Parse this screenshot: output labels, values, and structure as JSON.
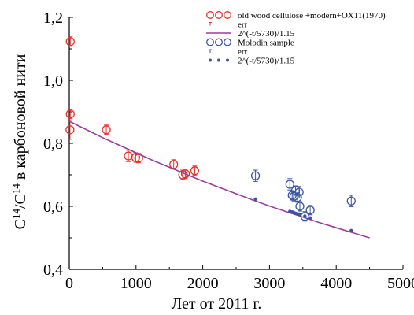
{
  "chart_data": {
    "type": "scatter",
    "xlabel": "Лет от 2011 г.",
    "ylabel_main": "C",
    "ylabel_sup1": "14",
    "ylabel_slash": "/C",
    "ylabel_sup2": "14",
    "ylabel_rest": " в карбоновой нити",
    "xlim": [
      0,
      5000
    ],
    "ylim": [
      0.4,
      1.2
    ],
    "x_ticks": [
      0,
      1000,
      2000,
      3000,
      4000,
      5000
    ],
    "x_tick_labels": [
      "0",
      "1000",
      "2000",
      "3000",
      "4000",
      "5000"
    ],
    "y_ticks": [
      0.4,
      0.6,
      0.8,
      1.0,
      1.2
    ],
    "y_tick_labels": [
      "0,4",
      "0,6",
      "0,8",
      "1,0",
      "1,2"
    ],
    "grid": false,
    "legend_position": "top-right",
    "colors": {
      "red": "#e8312a",
      "purple": "#9b3d9e",
      "blue": "#3a55a4",
      "axis": "#000000"
    },
    "series": [
      {
        "name": "old wood cellulose +modern+OX11(1970)",
        "kind": "points",
        "marker": "open-circle",
        "color": "#e8312a",
        "points": [
          {
            "x": 15,
            "y": 1.123,
            "err": 0.015
          },
          {
            "x": 15,
            "y": 0.893,
            "err": 0.015
          },
          {
            "x": 10,
            "y": 0.843,
            "err": 0.03
          },
          {
            "x": 555,
            "y": 0.843,
            "err": 0.015
          },
          {
            "x": 885,
            "y": 0.76,
            "err": 0.018
          },
          {
            "x": 995,
            "y": 0.755,
            "err": 0.015
          },
          {
            "x": 1040,
            "y": 0.753,
            "err": 0.015
          },
          {
            "x": 1565,
            "y": 0.733,
            "err": 0.015
          },
          {
            "x": 1700,
            "y": 0.7,
            "err": 0.015
          },
          {
            "x": 1740,
            "y": 0.703,
            "err": 0.015
          },
          {
            "x": 1880,
            "y": 0.713,
            "err": 0.015
          }
        ]
      },
      {
        "name": "err",
        "kind": "legend-errorbar",
        "color": "#e8312a"
      },
      {
        "name": "2^(-t/5730)/1.15",
        "kind": "line",
        "color": "#9b3d9e",
        "x": [
          0,
          250,
          500,
          750,
          1000,
          1250,
          1500,
          1750,
          2000,
          2250,
          2500,
          2750,
          3000,
          3250,
          3500,
          3750,
          4000,
          4250,
          4500
        ],
        "y": [
          0.87,
          0.844,
          0.818,
          0.794,
          0.77,
          0.746,
          0.724,
          0.702,
          0.68,
          0.66,
          0.64,
          0.62,
          0.601,
          0.583,
          0.566,
          0.548,
          0.532,
          0.516,
          0.5
        ]
      },
      {
        "name": "Molodin sample",
        "kind": "points",
        "marker": "open-circle",
        "color": "#3a55a4",
        "points": [
          {
            "x": 2790,
            "y": 0.697,
            "err": 0.018
          },
          {
            "x": 3305,
            "y": 0.67,
            "err": 0.018
          },
          {
            "x": 3340,
            "y": 0.635,
            "err": 0.015
          },
          {
            "x": 3365,
            "y": 0.632,
            "err": 0.015
          },
          {
            "x": 3390,
            "y": 0.65,
            "err": 0.015
          },
          {
            "x": 3420,
            "y": 0.628,
            "err": 0.015
          },
          {
            "x": 3445,
            "y": 0.645,
            "err": 0.018
          },
          {
            "x": 3455,
            "y": 0.6,
            "err": 0.015
          },
          {
            "x": 3530,
            "y": 0.568,
            "err": 0.015
          },
          {
            "x": 3610,
            "y": 0.588,
            "err": 0.015
          },
          {
            "x": 4225,
            "y": 0.617,
            "err": 0.018
          }
        ]
      },
      {
        "name": "err",
        "kind": "legend-errorbar",
        "color": "#3a55a4"
      },
      {
        "name": "2^(-t/5730)/1.15",
        "kind": "dots",
        "color": "#3a55a4",
        "x": [
          2790,
          3305,
          3340,
          3365,
          3390,
          3420,
          3445,
          3455,
          3530,
          3610,
          4225
        ],
        "y": [
          0.623,
          0.584,
          0.582,
          0.58,
          0.578,
          0.576,
          0.575,
          0.574,
          0.569,
          0.563,
          0.523
        ]
      }
    ]
  }
}
